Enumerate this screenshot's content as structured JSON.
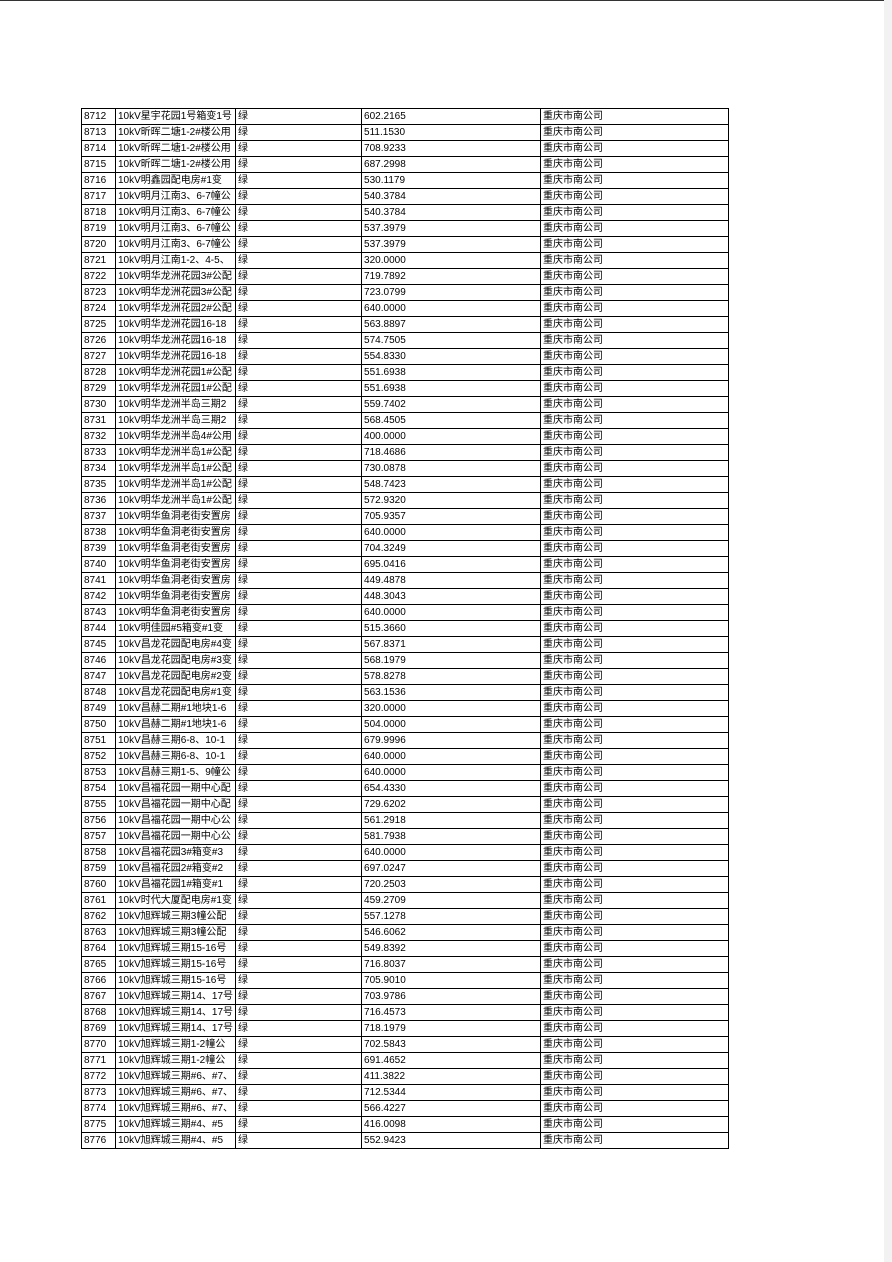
{
  "table": {
    "rows": [
      [
        "8712",
        "10kV星宇花园1号箱变1号",
        "绿",
        "602.2165",
        "重庆市南公司"
      ],
      [
        "8713",
        "10kV昕晖二塘1-2#楼公用",
        "绿",
        "511.1530",
        "重庆市南公司"
      ],
      [
        "8714",
        "10kV昕晖二塘1-2#楼公用",
        "绿",
        "708.9233",
        "重庆市南公司"
      ],
      [
        "8715",
        "10kV昕晖二塘1-2#楼公用",
        "绿",
        "687.2998",
        "重庆市南公司"
      ],
      [
        "8716",
        "10kV明鑫园配电房#1变",
        "绿",
        "530.1179",
        "重庆市南公司"
      ],
      [
        "8717",
        "10kV明月江南3、6-7幢公",
        "绿",
        "540.3784",
        "重庆市南公司"
      ],
      [
        "8718",
        "10kV明月江南3、6-7幢公",
        "绿",
        "540.3784",
        "重庆市南公司"
      ],
      [
        "8719",
        "10kV明月江南3、6-7幢公",
        "绿",
        "537.3979",
        "重庆市南公司"
      ],
      [
        "8720",
        "10kV明月江南3、6-7幢公",
        "绿",
        "537.3979",
        "重庆市南公司"
      ],
      [
        "8721",
        "10kV明月江南1-2、4-5、",
        "绿",
        "320.0000",
        "重庆市南公司"
      ],
      [
        "8722",
        "10kV明华龙洲花园3#公配",
        "绿",
        "719.7892",
        "重庆市南公司"
      ],
      [
        "8723",
        "10kV明华龙洲花园3#公配",
        "绿",
        "723.0799",
        "重庆市南公司"
      ],
      [
        "8724",
        "10kV明华龙洲花园2#公配",
        "绿",
        "640.0000",
        "重庆市南公司"
      ],
      [
        "8725",
        "10kV明华龙洲花园16-18",
        "绿",
        "563.8897",
        "重庆市南公司"
      ],
      [
        "8726",
        "10kV明华龙洲花园16-18",
        "绿",
        "574.7505",
        "重庆市南公司"
      ],
      [
        "8727",
        "10kV明华龙洲花园16-18",
        "绿",
        "554.8330",
        "重庆市南公司"
      ],
      [
        "8728",
        "10kV明华龙洲花园1#公配",
        "绿",
        "551.6938",
        "重庆市南公司"
      ],
      [
        "8729",
        "10kV明华龙洲花园1#公配",
        "绿",
        "551.6938",
        "重庆市南公司"
      ],
      [
        "8730",
        "10kV明华龙洲半岛三期2",
        "绿",
        "559.7402",
        "重庆市南公司"
      ],
      [
        "8731",
        "10kV明华龙洲半岛三期2",
        "绿",
        "568.4505",
        "重庆市南公司"
      ],
      [
        "8732",
        "10kV明华龙洲半岛4#公用",
        "绿",
        "400.0000",
        "重庆市南公司"
      ],
      [
        "8733",
        "10kV明华龙洲半岛1#公配",
        "绿",
        "718.4686",
        "重庆市南公司"
      ],
      [
        "8734",
        "10kV明华龙洲半岛1#公配",
        "绿",
        "730.0878",
        "重庆市南公司"
      ],
      [
        "8735",
        "10kV明华龙洲半岛1#公配",
        "绿",
        "548.7423",
        "重庆市南公司"
      ],
      [
        "8736",
        "10kV明华龙洲半岛1#公配",
        "绿",
        "572.9320",
        "重庆市南公司"
      ],
      [
        "8737",
        "10kV明华鱼洞老街安置房",
        "绿",
        "705.9357",
        "重庆市南公司"
      ],
      [
        "8738",
        "10kV明华鱼洞老街安置房",
        "绿",
        "640.0000",
        "重庆市南公司"
      ],
      [
        "8739",
        "10kV明华鱼洞老街安置房",
        "绿",
        "704.3249",
        "重庆市南公司"
      ],
      [
        "8740",
        "10kV明华鱼洞老街安置房",
        "绿",
        "695.0416",
        "重庆市南公司"
      ],
      [
        "8741",
        "10kV明华鱼洞老街安置房",
        "绿",
        "449.4878",
        "重庆市南公司"
      ],
      [
        "8742",
        "10kV明华鱼洞老街安置房",
        "绿",
        "448.3043",
        "重庆市南公司"
      ],
      [
        "8743",
        "10kV明华鱼洞老街安置房",
        "绿",
        "640.0000",
        "重庆市南公司"
      ],
      [
        "8744",
        "10kV明佳园#5箱变#1变",
        "绿",
        "515.3660",
        "重庆市南公司"
      ],
      [
        "8745",
        "10kV昌龙花园配电房#4变",
        "绿",
        "567.8371",
        "重庆市南公司"
      ],
      [
        "8746",
        "10kV昌龙花园配电房#3变",
        "绿",
        "568.1979",
        "重庆市南公司"
      ],
      [
        "8747",
        "10kV昌龙花园配电房#2变",
        "绿",
        "578.8278",
        "重庆市南公司"
      ],
      [
        "8748",
        "10kV昌龙花园配电房#1变",
        "绿",
        "563.1536",
        "重庆市南公司"
      ],
      [
        "8749",
        "10kV昌赫二期#1地块1-6",
        "绿",
        "320.0000",
        "重庆市南公司"
      ],
      [
        "8750",
        "10kV昌赫二期#1地块1-6",
        "绿",
        "504.0000",
        "重庆市南公司"
      ],
      [
        "8751",
        "10kV昌赫三期6-8、10-1",
        "绿",
        "679.9996",
        "重庆市南公司"
      ],
      [
        "8752",
        "10kV昌赫三期6-8、10-1",
        "绿",
        "640.0000",
        "重庆市南公司"
      ],
      [
        "8753",
        "10kV昌赫三期1-5、9幢公",
        "绿",
        "640.0000",
        "重庆市南公司"
      ],
      [
        "8754",
        "10kV昌福花园一期中心配",
        "绿",
        "654.4330",
        "重庆市南公司"
      ],
      [
        "8755",
        "10kV昌福花园一期中心配",
        "绿",
        "729.6202",
        "重庆市南公司"
      ],
      [
        "8756",
        "10kV昌福花园一期中心公",
        "绿",
        "561.2918",
        "重庆市南公司"
      ],
      [
        "8757",
        "10kV昌福花园一期中心公",
        "绿",
        "581.7938",
        "重庆市南公司"
      ],
      [
        "8758",
        "10kV昌福花园3#箱变#3",
        "绿",
        "640.0000",
        "重庆市南公司"
      ],
      [
        "8759",
        "10kV昌福花园2#箱变#2",
        "绿",
        "697.0247",
        "重庆市南公司"
      ],
      [
        "8760",
        "10kV昌福花园1#箱变#1",
        "绿",
        "720.2503",
        "重庆市南公司"
      ],
      [
        "8761",
        "10kV时代大厦配电房#1变",
        "绿",
        "459.2709",
        "重庆市南公司"
      ],
      [
        "8762",
        "10kV旭辉城三期3幢公配",
        "绿",
        "557.1278",
        "重庆市南公司"
      ],
      [
        "8763",
        "10kV旭辉城三期3幢公配",
        "绿",
        "546.6062",
        "重庆市南公司"
      ],
      [
        "8764",
        "10kV旭辉城三期15-16号",
        "绿",
        "549.8392",
        "重庆市南公司"
      ],
      [
        "8765",
        "10kV旭辉城三期15-16号",
        "绿",
        "716.8037",
        "重庆市南公司"
      ],
      [
        "8766",
        "10kV旭辉城三期15-16号",
        "绿",
        "705.9010",
        "重庆市南公司"
      ],
      [
        "8767",
        "10kV旭辉城三期14、17号",
        "绿",
        "703.9786",
        "重庆市南公司"
      ],
      [
        "8768",
        "10kV旭辉城三期14、17号",
        "绿",
        "716.4573",
        "重庆市南公司"
      ],
      [
        "8769",
        "10kV旭辉城三期14、17号",
        "绿",
        "718.1979",
        "重庆市南公司"
      ],
      [
        "8770",
        "10kV旭辉城三期1-2幢公",
        "绿",
        "702.5843",
        "重庆市南公司"
      ],
      [
        "8771",
        "10kV旭辉城三期1-2幢公",
        "绿",
        "691.4652",
        "重庆市南公司"
      ],
      [
        "8772",
        "10kV旭辉城三期#6、#7、",
        "绿",
        "411.3822",
        "重庆市南公司"
      ],
      [
        "8773",
        "10kV旭辉城三期#6、#7、",
        "绿",
        "712.5344",
        "重庆市南公司"
      ],
      [
        "8774",
        "10kV旭辉城三期#6、#7、",
        "绿",
        "566.4227",
        "重庆市南公司"
      ],
      [
        "8775",
        "10kV旭辉城三期#4、#5",
        "绿",
        "416.0098",
        "重庆市南公司"
      ],
      [
        "8776",
        "10kV旭辉城三期#4、#5",
        "绿",
        "552.9423",
        "重庆市南公司"
      ]
    ]
  }
}
